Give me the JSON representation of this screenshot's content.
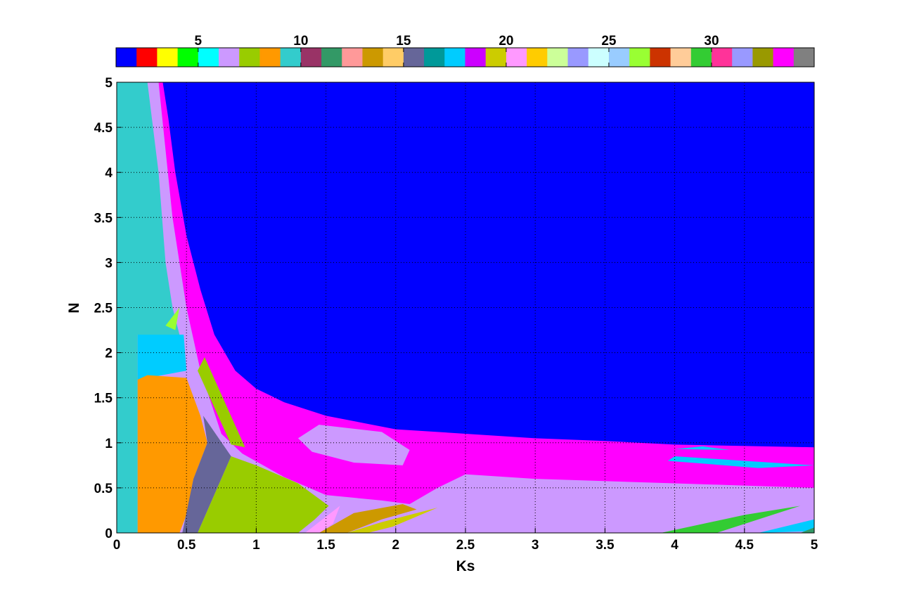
{
  "chart_data": {
    "type": "heatmap",
    "title": "",
    "xlabel": "Ks",
    "ylabel": "N",
    "xlim": [
      0,
      5
    ],
    "ylim": [
      0,
      5
    ],
    "xticks": [
      "0",
      "0.5",
      "1",
      "1.5",
      "2",
      "2.5",
      "3",
      "3.5",
      "4",
      "4.5",
      "5"
    ],
    "yticks": [
      "0",
      "0.5",
      "1",
      "1.5",
      "2",
      "2.5",
      "3",
      "3.5",
      "4",
      "4.5",
      "5"
    ],
    "grid": true,
    "colorbar": {
      "placement": "top",
      "range": [
        1,
        35
      ],
      "ticks": [
        "5",
        "10",
        "15",
        "20",
        "25",
        "30"
      ],
      "colors": [
        "#0000ff",
        "#ff0000",
        "#ffff00",
        "#00ff00",
        "#00ffff",
        "#cc99ff",
        "#99cc00",
        "#ff9900",
        "#33cccc",
        "#993366",
        "#339966",
        "#ff9999",
        "#cc9900",
        "#ffcc66",
        "#666699",
        "#009999",
        "#00ccff",
        "#cc00ff",
        "#cccc00",
        "#ff99ff",
        "#ffcc00",
        "#ccff99",
        "#9999ff",
        "#ccffff",
        "#99ccff",
        "#99ff33",
        "#cc3300",
        "#ffcc99",
        "#33cc33",
        "#ff3399",
        "#9999ff",
        "#999900",
        "#ff00ff",
        "#808080"
      ]
    },
    "regions": [
      {
        "class": 6,
        "points": [
          [
            0,
            0
          ],
          [
            5,
            0
          ],
          [
            5,
            5
          ],
          [
            0,
            5
          ]
        ]
      },
      {
        "class": 33,
        "points": [
          [
            0.3,
            5
          ],
          [
            5,
            5
          ],
          [
            5,
            0.5
          ],
          [
            4,
            0.55
          ],
          [
            3,
            0.6
          ],
          [
            2.5,
            0.65
          ],
          [
            2.3,
            0.5
          ],
          [
            2.1,
            0.32
          ],
          [
            1.9,
            0.36
          ],
          [
            1.5,
            0.42
          ],
          [
            1.2,
            0.62
          ],
          [
            0.9,
            0.88
          ],
          [
            0.75,
            1.1
          ],
          [
            0.6,
            1.8
          ],
          [
            0.5,
            2.5
          ],
          [
            0.4,
            3.5
          ],
          [
            0.3,
            5
          ]
        ]
      },
      {
        "class": 6,
        "points": [
          [
            1.3,
            1.05
          ],
          [
            1.45,
            1.2
          ],
          [
            1.9,
            1.12
          ],
          [
            2.1,
            0.92
          ],
          [
            2.05,
            0.75
          ],
          [
            1.7,
            0.78
          ],
          [
            1.4,
            0.9
          ]
        ]
      },
      {
        "class": 1,
        "points": [
          [
            0.33,
            5
          ],
          [
            5,
            5
          ],
          [
            5,
            0.95
          ],
          [
            4,
            0.98
          ],
          [
            3.5,
            1.02
          ],
          [
            3,
            1.05
          ],
          [
            2.5,
            1.1
          ],
          [
            2,
            1.15
          ],
          [
            1.5,
            1.3
          ],
          [
            1.2,
            1.45
          ],
          [
            1,
            1.6
          ],
          [
            0.85,
            1.8
          ],
          [
            0.7,
            2.2
          ],
          [
            0.6,
            2.7
          ],
          [
            0.5,
            3.3
          ],
          [
            0.42,
            4
          ],
          [
            0.37,
            4.6
          ]
        ]
      },
      {
        "class": 9,
        "points": [
          [
            0,
            5
          ],
          [
            0.22,
            5
          ],
          [
            0.3,
            4
          ],
          [
            0.35,
            3
          ],
          [
            0.4,
            2.5
          ],
          [
            0.45,
            2.2
          ],
          [
            0.15,
            2.2
          ],
          [
            0.15,
            0
          ],
          [
            0,
            0
          ]
        ]
      },
      {
        "class": 17,
        "points": [
          [
            0.15,
            2.2
          ],
          [
            0.48,
            2.2
          ],
          [
            0.5,
            1.8
          ],
          [
            0.22,
            1.72
          ],
          [
            0.15,
            1.7
          ]
        ]
      },
      {
        "class": 8,
        "points": [
          [
            0.15,
            1.7
          ],
          [
            0.22,
            1.75
          ],
          [
            0.5,
            1.72
          ],
          [
            0.6,
            1.3
          ],
          [
            0.65,
            1.0
          ],
          [
            0.55,
            0.6
          ],
          [
            0.5,
            0.2
          ],
          [
            0.45,
            0
          ],
          [
            0.15,
            0
          ]
        ]
      },
      {
        "class": 15,
        "points": [
          [
            0.62,
            1.3
          ],
          [
            0.82,
            0.85
          ],
          [
            0.58,
            0
          ],
          [
            0.47,
            0
          ],
          [
            0.55,
            0.6
          ],
          [
            0.65,
            1.0
          ]
        ]
      },
      {
        "class": 7,
        "points": [
          [
            0.82,
            0.85
          ],
          [
            1.0,
            0.75
          ],
          [
            1.3,
            0.55
          ],
          [
            1.52,
            0.3
          ],
          [
            1.42,
            0.15
          ],
          [
            1.3,
            0
          ],
          [
            0.58,
            0
          ]
        ]
      },
      {
        "class": 7,
        "points": [
          [
            0.58,
            1.8
          ],
          [
            0.63,
            1.95
          ],
          [
            0.92,
            0.95
          ],
          [
            0.82,
            0.98
          ]
        ]
      },
      {
        "class": 13,
        "points": [
          [
            1.45,
            0
          ],
          [
            1.7,
            0.22
          ],
          [
            2.05,
            0.32
          ],
          [
            2.15,
            0.26
          ],
          [
            1.9,
            0.15
          ],
          [
            1.65,
            0
          ]
        ]
      },
      {
        "class": 19,
        "points": [
          [
            1.65,
            0
          ],
          [
            1.9,
            0.12
          ],
          [
            2.3,
            0.28
          ],
          [
            1.98,
            0.07
          ],
          [
            1.8,
            0
          ]
        ]
      },
      {
        "class": 20,
        "points": [
          [
            1.35,
            0
          ],
          [
            1.45,
            0.12
          ],
          [
            1.6,
            0.3
          ],
          [
            1.55,
            0.1
          ],
          [
            1.45,
            0
          ]
        ]
      },
      {
        "class": 26,
        "points": [
          [
            0.35,
            2.3
          ],
          [
            0.45,
            2.5
          ],
          [
            0.42,
            2.25
          ]
        ]
      },
      {
        "class": 29,
        "points": [
          [
            3.9,
            0
          ],
          [
            4.5,
            0.2
          ],
          [
            4.9,
            0.3
          ],
          [
            4.6,
            0.15
          ],
          [
            4.3,
            0
          ]
        ]
      },
      {
        "class": 17,
        "points": [
          [
            4.6,
            0
          ],
          [
            5,
            0.15
          ],
          [
            5,
            0.02
          ]
        ]
      },
      {
        "class": 11,
        "points": [
          [
            4.9,
            0
          ],
          [
            5,
            0.06
          ],
          [
            5,
            0
          ]
        ]
      },
      {
        "class": 17,
        "points": [
          [
            3.95,
            0.8
          ],
          [
            4.6,
            0.72
          ],
          [
            5,
            0.75
          ],
          [
            4.5,
            0.8
          ],
          [
            4.0,
            0.85
          ]
        ]
      },
      {
        "class": 17,
        "points": [
          [
            4.0,
            0.93
          ],
          [
            4.4,
            0.92
          ],
          [
            4.2,
            0.96
          ]
        ]
      }
    ]
  }
}
